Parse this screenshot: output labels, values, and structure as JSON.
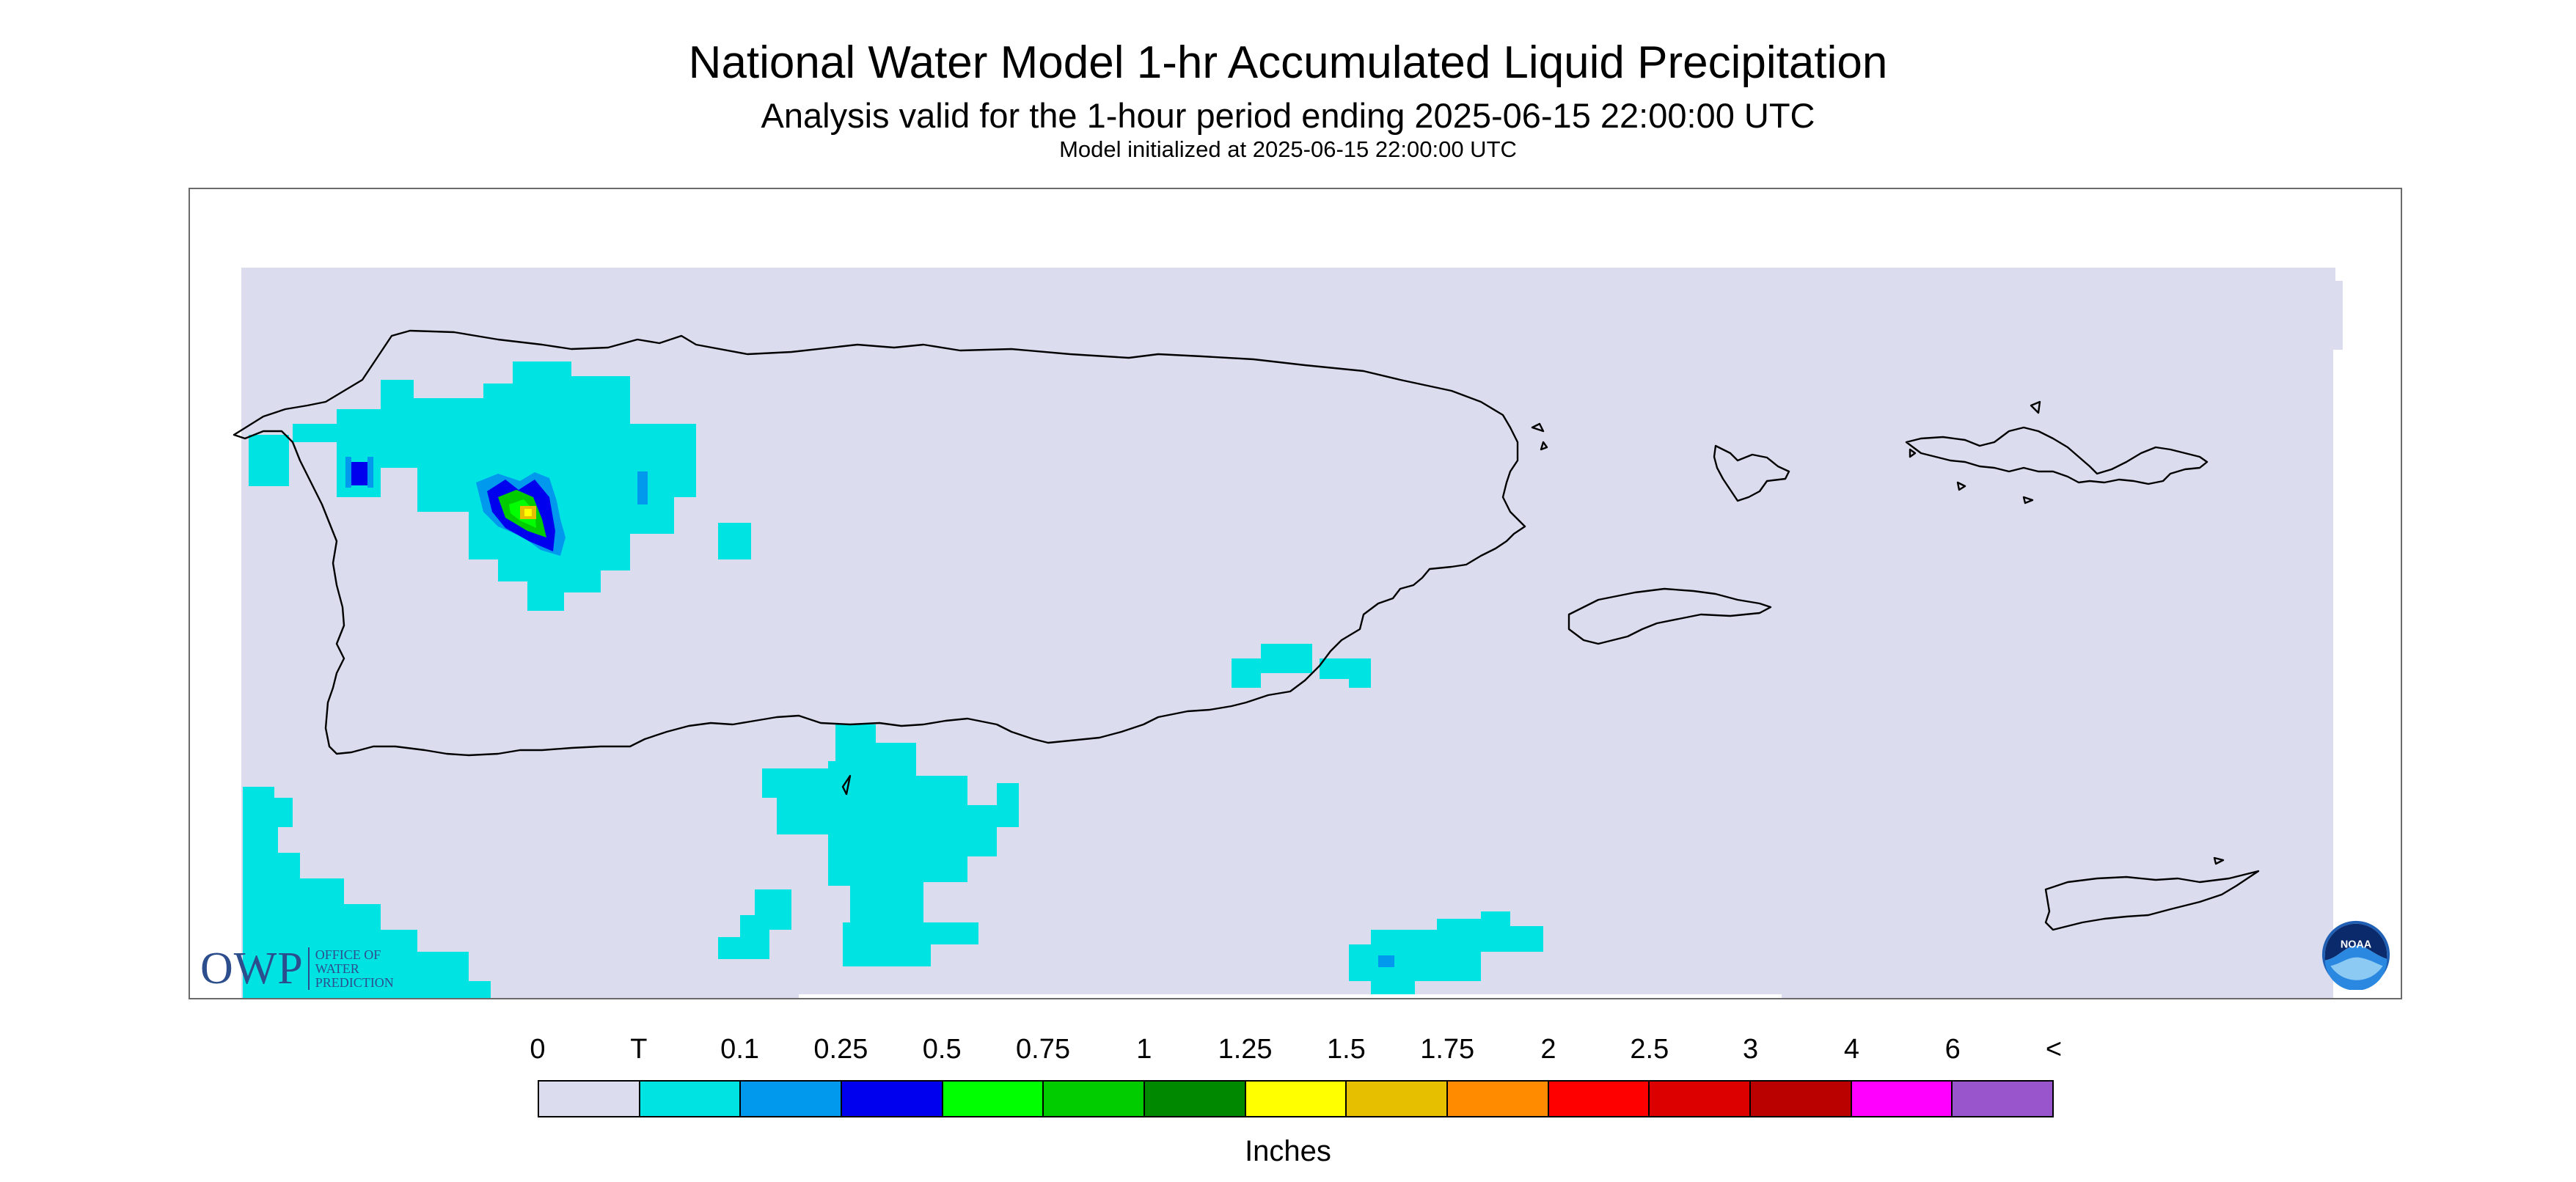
{
  "title": "National Water Model 1-hr Accumulated Liquid Precipitation",
  "subtitle": "Analysis valid for the 1-hour period ending 2025-06-15 22:00:00 UTC",
  "init_line": "Model initialized at 2025-06-15 22:00:00 UTC",
  "logos": {
    "owp": {
      "letters": "OWP",
      "line1": "OFFICE OF",
      "line2": "WATER",
      "line3": "PREDICTION"
    },
    "noaa": {
      "text": "NOAA"
    }
  },
  "legend": {
    "labels": [
      "0",
      "T",
      "0.1",
      "0.25",
      "0.5",
      "0.75",
      "1",
      "1.25",
      "1.5",
      "1.75",
      "2",
      "2.5",
      "3",
      "4",
      "6",
      "<"
    ],
    "colors": [
      "#dcdcef",
      "#00e3e3",
      "#0099ee",
      "#0000ee",
      "#00ff00",
      "#00cc00",
      "#008800",
      "#ffff00",
      "#e5bf00",
      "#ff8c00",
      "#ff0000",
      "#dd0000",
      "#bb0000",
      "#ff00ff",
      "#9955cc"
    ],
    "units": "Inches"
  },
  "colors": {
    "background_field": "#dcdcef",
    "frame": "#6a6a6a",
    "coastline": "#000000"
  }
}
